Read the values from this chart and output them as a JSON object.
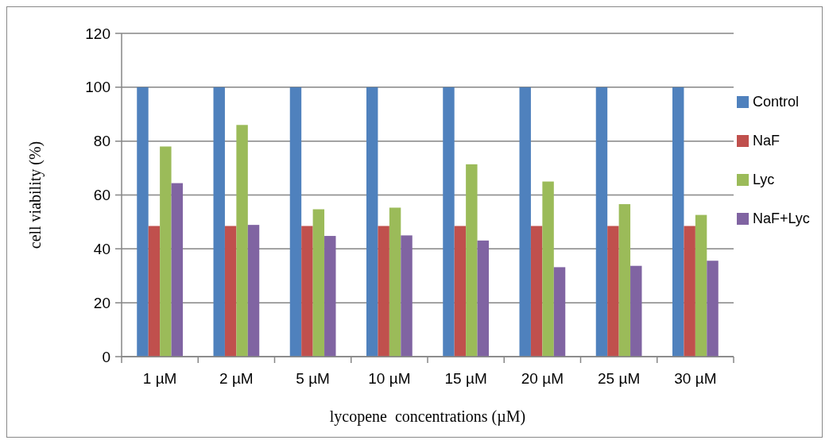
{
  "chart_data": {
    "type": "bar",
    "xlabel": "lycopene  concentrations (µM)",
    "ylabel": "cell viability (%)",
    "categories": [
      "1 µM",
      "2 µM",
      "5 µM",
      "10 µM",
      "15 µM",
      "20 µM",
      "25 µM",
      "30 µM"
    ],
    "series": [
      {
        "name": "Control",
        "color": "#4f81bd",
        "values": [
          100,
          100,
          100,
          100,
          100,
          100,
          100,
          100
        ]
      },
      {
        "name": "NaF",
        "color": "#c0504d",
        "values": [
          48.5,
          48.5,
          48.5,
          48.5,
          48.5,
          48.5,
          48.5,
          48.5
        ]
      },
      {
        "name": "Lyc",
        "color": "#9bbb59",
        "values": [
          78,
          86,
          54.7,
          55.3,
          71.4,
          65,
          56.6,
          52.6
        ]
      },
      {
        "name": "NaF+Lyc",
        "color": "#8064a2",
        "values": [
          64.4,
          48.9,
          44.8,
          45,
          43.1,
          33.2,
          33.7,
          35.6
        ]
      }
    ],
    "ylim": [
      0,
      120
    ],
    "yticks": [
      0,
      20,
      40,
      60,
      80,
      100,
      120
    ],
    "grid": "y",
    "legend": "right"
  }
}
